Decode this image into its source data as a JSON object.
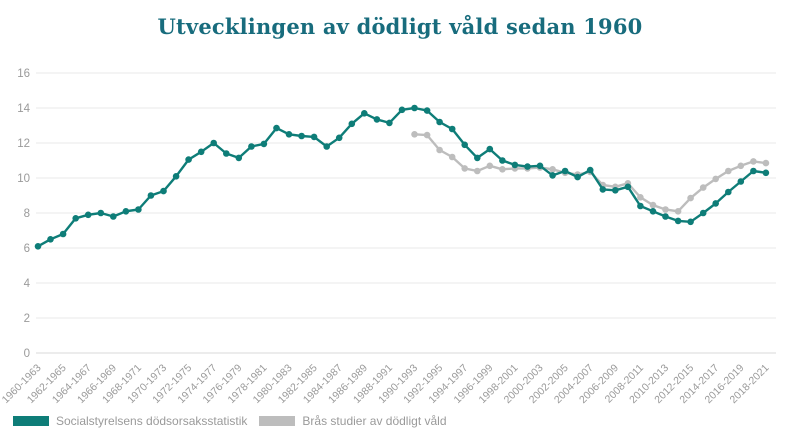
{
  "title": "Utvecklingen av dödligt våld sedan 1960",
  "colors": {
    "teal": "#0e7d78",
    "gray": "#bdbdbd",
    "title_text": "#186c7d",
    "axis_text": "#9a9a9a",
    "gridline": "#e9e9e9",
    "baseline": "#d8d8d8",
    "background": "#ffffff"
  },
  "legend": {
    "items": [
      {
        "label": "Socialstyrelsens dödsorsaksstatistik",
        "color": "#0e7d78"
      },
      {
        "label": "Brås studier av dödligt våld",
        "color": "#bdbdbd"
      }
    ]
  },
  "chart_data": {
    "type": "line",
    "title": "Utvecklingen av dödligt våld sedan 1960",
    "xlabel": "",
    "ylabel": "",
    "ylim": [
      0,
      16
    ],
    "y_ticks": [
      0,
      2,
      4,
      6,
      8,
      10,
      12,
      14,
      16
    ],
    "grid": true,
    "legend_position": "bottom",
    "x_tick_labels": [
      "1960-1963",
      "1962-1965",
      "1964-1967",
      "1966-1969",
      "1968-1971",
      "1970-1973",
      "1972-1975",
      "1974-1977",
      "1976-1979",
      "1978-1981",
      "1980-1983",
      "1982-1985",
      "1984-1987",
      "1986-1989",
      "1988-1991",
      "1990-1993",
      "1992-1995",
      "1994-1997",
      "1996-1999",
      "1998-2001",
      "2000-2003",
      "2002-2005",
      "2004-2007",
      "2006-2009",
      "2008-2011",
      "2010-2013",
      "2012-2015",
      "2014-2017",
      "2016-2019",
      "2018-2021"
    ],
    "series": [
      {
        "name": "Brås studier av dödligt våld",
        "color": "#bdbdbd",
        "start_index": 30,
        "values": [
          12.5,
          12.45,
          11.6,
          11.2,
          10.55,
          10.4,
          10.7,
          10.5,
          10.55,
          10.55,
          10.6,
          10.5,
          10.3,
          10.2,
          10.35,
          9.6,
          9.5,
          9.7,
          8.9,
          8.45,
          8.2,
          8.1,
          8.85,
          9.45,
          9.95,
          10.4,
          10.7,
          10.95,
          10.85
        ]
      },
      {
        "name": "Socialstyrelsens dödsorsaksstatistik",
        "color": "#0e7d78",
        "start_index": 0,
        "values": [
          6.1,
          6.5,
          6.8,
          7.7,
          7.9,
          8.0,
          7.8,
          8.1,
          8.2,
          9.0,
          9.25,
          10.1,
          11.05,
          11.5,
          12.0,
          11.4,
          11.15,
          11.8,
          11.95,
          12.85,
          12.5,
          12.4,
          12.35,
          11.8,
          12.3,
          13.1,
          13.7,
          13.35,
          13.15,
          13.9,
          14.0,
          13.85,
          13.2,
          12.8,
          11.9,
          11.15,
          11.65,
          11.0,
          10.75,
          10.65,
          10.7,
          10.15,
          10.4,
          10.05,
          10.45,
          9.35,
          9.3,
          9.5,
          8.4,
          8.1,
          7.8,
          7.55,
          7.5,
          8.0,
          8.55,
          9.2,
          9.8,
          10.4,
          10.3
        ]
      }
    ]
  }
}
